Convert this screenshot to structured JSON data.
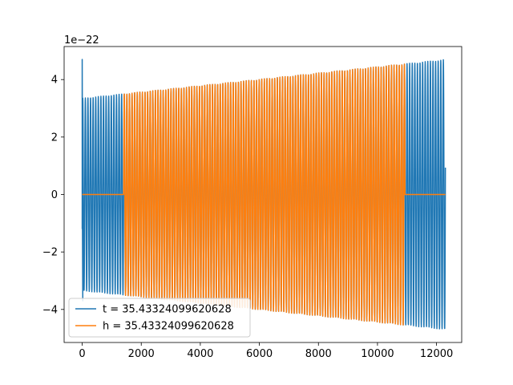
{
  "chart_data": {
    "type": "line",
    "title": "",
    "xlabel": "",
    "ylabel": "",
    "y_offset_label": "1e−22",
    "xlim": [
      -612,
      12852
    ],
    "ylim": [
      -5.15,
      5.15
    ],
    "xticks": [
      0,
      2000,
      4000,
      6000,
      8000,
      10000,
      12000
    ],
    "yticks": [
      -4,
      -2,
      0,
      2,
      4
    ],
    "ytick_labels": [
      "−4",
      "−2",
      "0",
      "2",
      "4"
    ],
    "grid": false,
    "legend_position": "lower-left",
    "series": [
      {
        "name": "t = 35.43324099620628",
        "color": "#1f77b4",
        "x_range": [
          0,
          12300
        ],
        "oscillation_cycles": 140,
        "amplitude_start": 3.35,
        "amplitude_end": 4.7,
        "initial_spike": 4.7,
        "flat_segments": []
      },
      {
        "name": "h = 35.43324099620628",
        "color": "#ff7f0e",
        "x_range": [
          0,
          12300
        ],
        "oscillation_cycles": 140,
        "amplitude_start": 3.35,
        "amplitude_end": 4.7,
        "initial_spike": 0,
        "flat_segments": [
          [
            0,
            1400
          ],
          [
            10930,
            12300
          ]
        ]
      }
    ]
  }
}
